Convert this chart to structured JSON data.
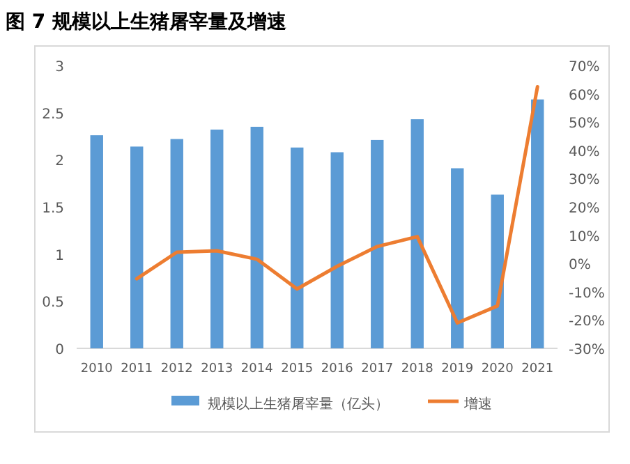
{
  "chart_data": {
    "type": "bar",
    "title": "图 7 规模以上生猪屠宰量及增速",
    "categories": [
      "2010",
      "2011",
      "2012",
      "2013",
      "2014",
      "2015",
      "2016",
      "2017",
      "2018",
      "2019",
      "2020",
      "2021"
    ],
    "series": [
      {
        "name": "规模以上生猪屠宰量（亿头）",
        "color": "#5b9bd5",
        "values": [
          2.26,
          2.14,
          2.22,
          2.32,
          2.35,
          2.13,
          2.08,
          2.21,
          2.43,
          1.91,
          1.63,
          2.64
        ]
      },
      {
        "name": "增速",
        "type": "line",
        "axis": "y2",
        "color": "#ed7d31",
        "values": [
          null,
          -5.4,
          4,
          4.5,
          1.5,
          -9,
          -1,
          6,
          9.5,
          -21,
          -15,
          62.5
        ]
      }
    ],
    "ylim": [
      0,
      3
    ],
    "yticks": [
      0,
      0.5,
      1,
      1.5,
      2,
      2.5,
      3
    ],
    "y2lim": [
      -30,
      70
    ],
    "y2ticks": [
      {
        "value": -30,
        "label": "-30%"
      },
      {
        "value": -20,
        "label": "-20%"
      },
      {
        "value": -10,
        "label": "-10%"
      },
      {
        "value": 0,
        "label": "0%"
      },
      {
        "value": 10,
        "label": "10%"
      },
      {
        "value": 20,
        "label": "20%"
      },
      {
        "value": 30,
        "label": "30%"
      },
      {
        "value": 40,
        "label": "40%"
      },
      {
        "value": 50,
        "label": "50%"
      },
      {
        "value": 60,
        "label": "60%"
      },
      {
        "value": 70,
        "label": "70%"
      }
    ],
    "grid": false,
    "legend": "bottom"
  }
}
